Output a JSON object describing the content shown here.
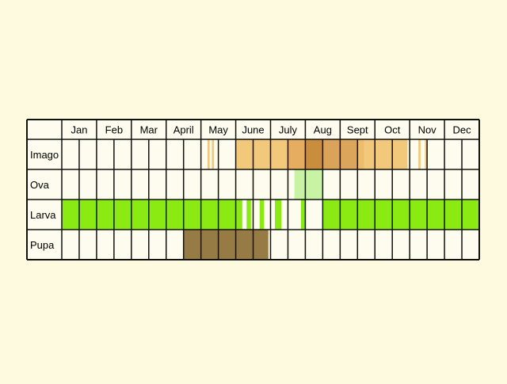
{
  "months": [
    "Jan",
    "Feb",
    "Mar",
    "April",
    "May",
    "June",
    "July",
    "Aug",
    "Sept",
    "Oct",
    "Nov",
    "Dec"
  ],
  "stages": [
    {
      "label": "Imago",
      "spans": [
        {
          "from": 8.375,
          "to": 8.5,
          "color": "#f2c87a"
        },
        {
          "from": 8.625,
          "to": 8.75,
          "color": "#f2c87a"
        },
        {
          "from": 10.0,
          "to": 13.0,
          "color": "#f2c87a"
        },
        {
          "from": 13.0,
          "to": 14.0,
          "color": "#e6ac5f"
        },
        {
          "from": 14.0,
          "to": 15.0,
          "color": "#c88e3d"
        },
        {
          "from": 15.0,
          "to": 16.0,
          "color": "#d9a45a"
        },
        {
          "from": 16.0,
          "to": 17.0,
          "color": "#dba55b"
        },
        {
          "from": 17.0,
          "to": 17.375,
          "color": "#ecbd6e"
        },
        {
          "from": 17.375,
          "to": 19.875,
          "color": "#f2c87a"
        },
        {
          "from": 20.5,
          "to": 20.625,
          "color": "#f2c87a"
        },
        {
          "from": 20.875,
          "to": 21.0,
          "color": "#f2c87a"
        }
      ]
    },
    {
      "label": "Ova",
      "spans": [
        {
          "from": 13.375,
          "to": 15.0,
          "color": "#c7f3a3"
        }
      ]
    },
    {
      "label": "Larva",
      "spans": [
        {
          "from": 0.0,
          "to": 10.375,
          "color": "#8aea12"
        },
        {
          "from": 10.625,
          "to": 10.875,
          "color": "#8aea12"
        },
        {
          "from": 11.375,
          "to": 11.625,
          "color": "#8aea12"
        },
        {
          "from": 12.25,
          "to": 12.625,
          "color": "#8aea12"
        },
        {
          "from": 13.75,
          "to": 14.0,
          "color": "#8aea12"
        },
        {
          "from": 15.0,
          "to": 24.0,
          "color": "#8aea12"
        }
      ]
    },
    {
      "label": "Pupa",
      "spans": [
        {
          "from": 7.0,
          "to": 11.875,
          "color": "#967b44"
        }
      ]
    }
  ],
  "colors": {
    "background": "#fdfadf",
    "cell": "#fdfcee",
    "grid": "#111111"
  }
}
